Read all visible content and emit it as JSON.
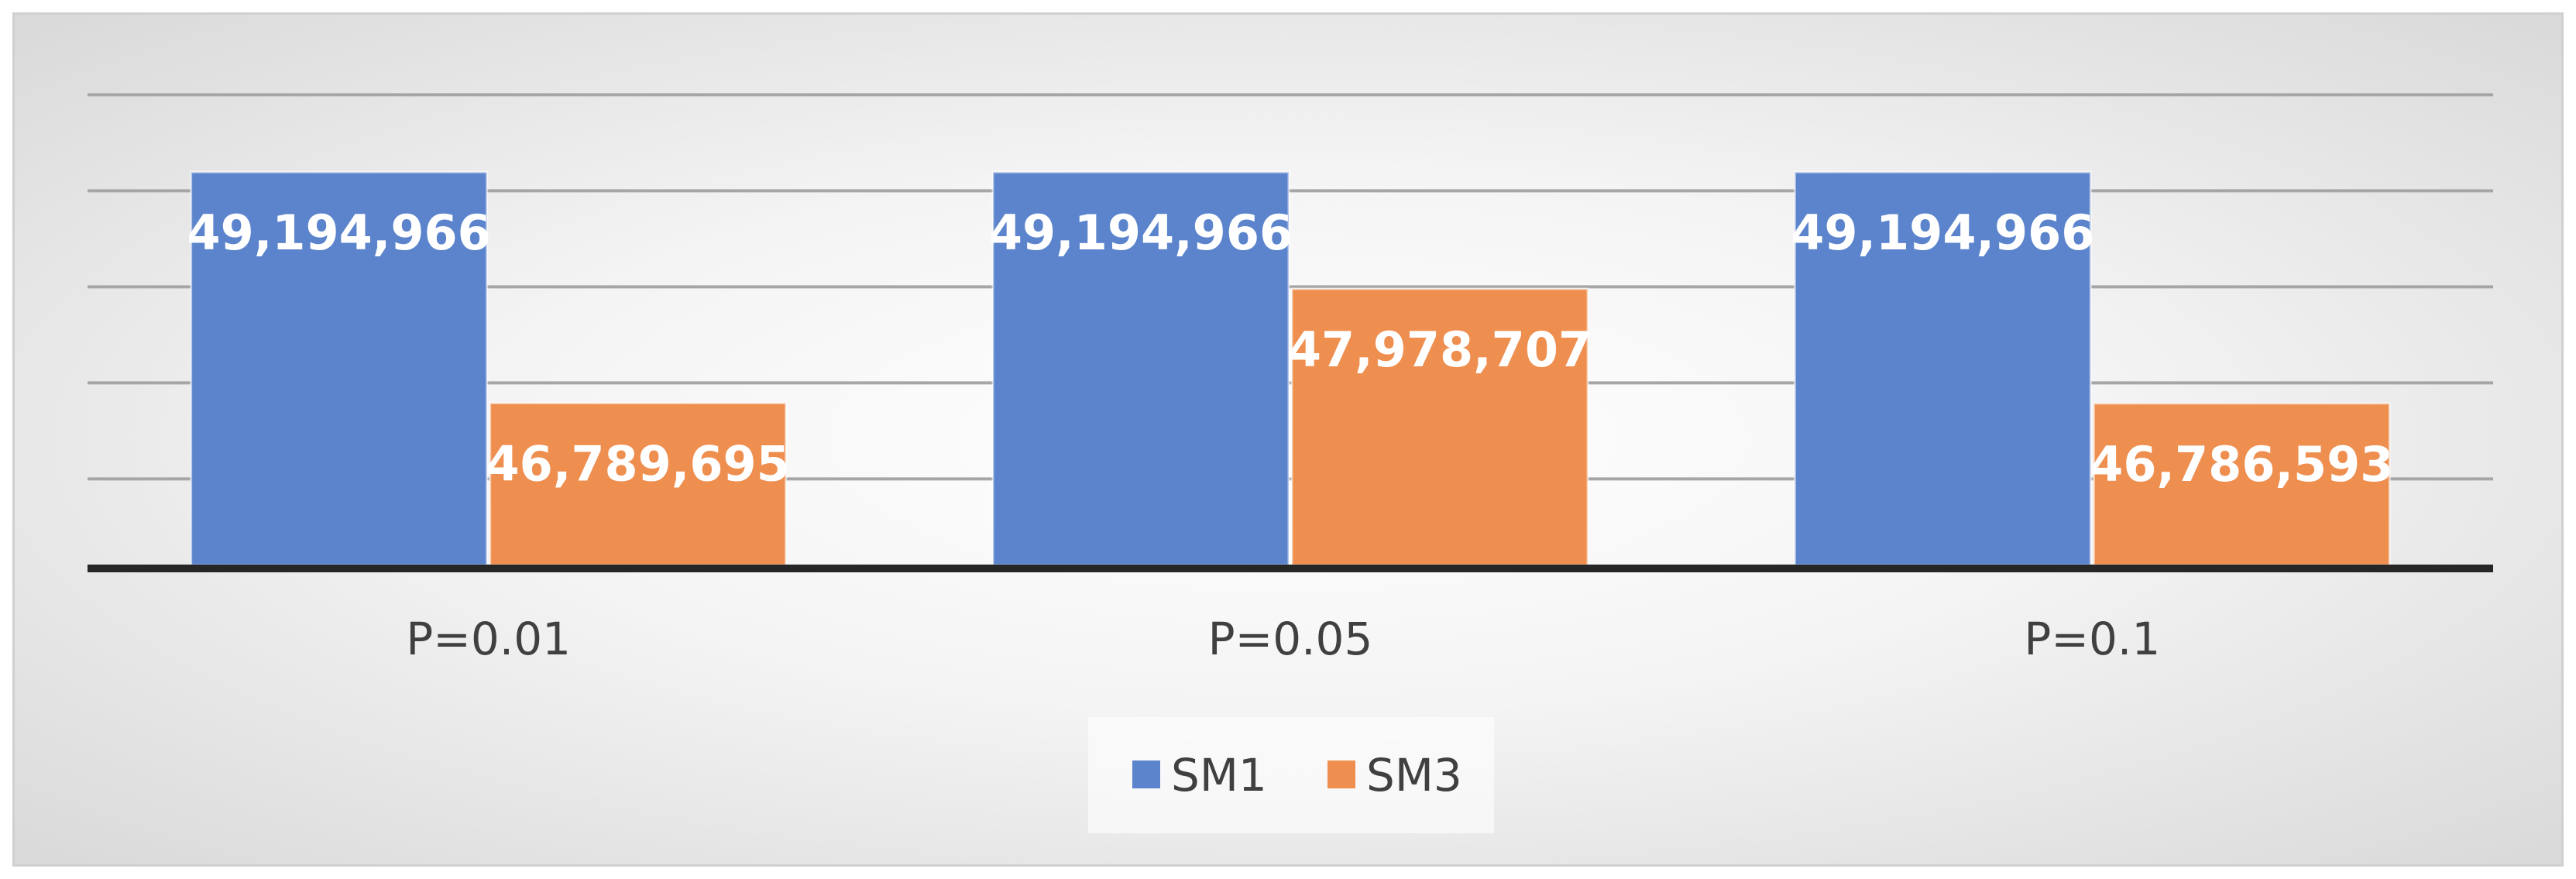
{
  "chart_data": {
    "type": "bar",
    "categories": [
      "P=0.01",
      "P=0.05",
      "P=0.1"
    ],
    "series": [
      {
        "name": "SM1",
        "values": [
          49194966,
          49194966,
          49194966
        ],
        "labels": [
          "49,194,966",
          "49,194,966",
          "49,194,966"
        ],
        "color": "#5B84CC"
      },
      {
        "name": "SM3",
        "values": [
          46789695,
          47978707,
          46786593
        ],
        "labels": [
          "46,789,695",
          "47,978,707",
          "46,786,593"
        ],
        "color": "#EE8E4F"
      }
    ],
    "ylim": [
      45100000,
      50200000
    ],
    "grid": true,
    "legend": "bottom",
    "title": "",
    "xlabel": "",
    "ylabel": ""
  }
}
